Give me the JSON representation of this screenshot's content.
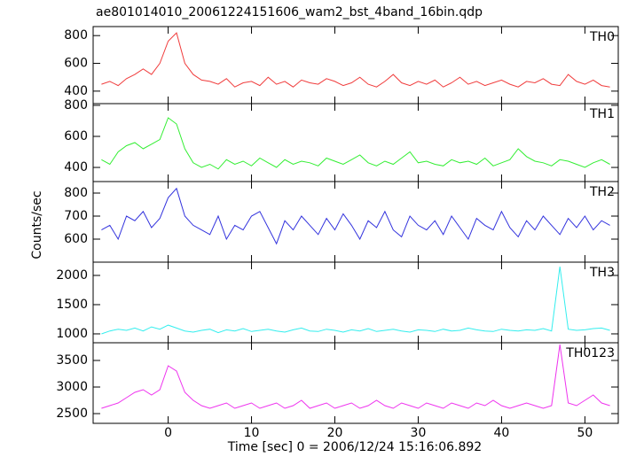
{
  "title": "ae801014010_20061224151606_wam2_bst_4band_16bin.qdp",
  "y_label": "Counts/sec",
  "x_label": "Time [sec] 0 = 2006/12/24 15:16:06.892",
  "chart_data": [
    {
      "type": "line",
      "title": "TH0",
      "color": "#f03c3c",
      "x": [
        -8,
        -7,
        -6,
        -5,
        -4,
        -3,
        -2,
        -1,
        0,
        1,
        2,
        3,
        4,
        5,
        6,
        7,
        8,
        9,
        10,
        11,
        12,
        13,
        14,
        15,
        16,
        17,
        18,
        19,
        20,
        21,
        22,
        23,
        24,
        25,
        26,
        27,
        28,
        29,
        30,
        31,
        32,
        33,
        34,
        35,
        36,
        37,
        38,
        39,
        40,
        41,
        42,
        43,
        44,
        45,
        46,
        47,
        48,
        49,
        50,
        51,
        52,
        53
      ],
      "values": [
        450,
        470,
        440,
        490,
        520,
        560,
        520,
        600,
        760,
        820,
        600,
        520,
        480,
        470,
        450,
        490,
        430,
        460,
        470,
        440,
        500,
        450,
        470,
        430,
        480,
        460,
        450,
        490,
        470,
        440,
        460,
        500,
        450,
        430,
        470,
        520,
        460,
        440,
        470,
        450,
        480,
        430,
        460,
        500,
        450,
        470,
        440,
        460,
        480,
        450,
        430,
        470,
        460,
        490,
        450,
        440,
        520,
        470,
        450,
        480,
        440,
        430
      ],
      "xlim": [
        -9,
        54
      ],
      "xticks": [
        0,
        10,
        20,
        30,
        40,
        50
      ],
      "ylim": [
        310,
        865
      ],
      "yticks": [
        400,
        600,
        800
      ]
    },
    {
      "type": "line",
      "title": "TH1",
      "color": "#33ee33",
      "x": [
        -8,
        -7,
        -6,
        -5,
        -4,
        -3,
        -2,
        -1,
        0,
        1,
        2,
        3,
        4,
        5,
        6,
        7,
        8,
        9,
        10,
        11,
        12,
        13,
        14,
        15,
        16,
        17,
        18,
        19,
        20,
        21,
        22,
        23,
        24,
        25,
        26,
        27,
        28,
        29,
        30,
        31,
        32,
        33,
        34,
        35,
        36,
        37,
        38,
        39,
        40,
        41,
        42,
        43,
        44,
        45,
        46,
        47,
        48,
        49,
        50,
        51,
        52,
        53
      ],
      "values": [
        450,
        420,
        500,
        540,
        560,
        520,
        550,
        580,
        720,
        680,
        520,
        430,
        400,
        420,
        390,
        450,
        420,
        440,
        410,
        460,
        430,
        400,
        450,
        420,
        440,
        430,
        410,
        460,
        440,
        420,
        450,
        480,
        430,
        410,
        440,
        420,
        460,
        500,
        430,
        440,
        420,
        410,
        450,
        430,
        440,
        420,
        460,
        410,
        430,
        450,
        520,
        470,
        440,
        430,
        410,
        450,
        440,
        420,
        400,
        430,
        450,
        420
      ],
      "xlim": [
        -9,
        54
      ],
      "xticks": [
        0,
        10,
        20,
        30,
        40,
        50
      ],
      "ylim": [
        309,
        811
      ],
      "yticks": [
        400,
        600,
        800
      ]
    },
    {
      "type": "line",
      "title": "TH2",
      "color": "#3333dd",
      "x": [
        -8,
        -7,
        -6,
        -5,
        -4,
        -3,
        -2,
        -1,
        0,
        1,
        2,
        3,
        4,
        5,
        6,
        7,
        8,
        9,
        10,
        11,
        12,
        13,
        14,
        15,
        16,
        17,
        18,
        19,
        20,
        21,
        22,
        23,
        24,
        25,
        26,
        27,
        28,
        29,
        30,
        31,
        32,
        33,
        34,
        35,
        36,
        37,
        38,
        39,
        40,
        41,
        42,
        43,
        44,
        45,
        46,
        47,
        48,
        49,
        50,
        51,
        52,
        53
      ],
      "values": [
        640,
        660,
        600,
        700,
        680,
        720,
        650,
        690,
        780,
        820,
        700,
        660,
        640,
        620,
        700,
        600,
        660,
        640,
        700,
        720,
        650,
        580,
        680,
        640,
        700,
        660,
        620,
        690,
        640,
        710,
        660,
        600,
        680,
        650,
        720,
        640,
        610,
        700,
        660,
        640,
        680,
        620,
        700,
        650,
        600,
        690,
        660,
        640,
        720,
        650,
        610,
        680,
        640,
        700,
        660,
        620,
        690,
        650,
        700,
        640,
        680,
        660
      ],
      "xlim": [
        -9,
        54
      ],
      "xticks": [
        0,
        10,
        20,
        30,
        40,
        50
      ],
      "ylim": [
        500,
        850
      ],
      "yticks": [
        600,
        700,
        800
      ]
    },
    {
      "type": "line",
      "title": "TH3",
      "color": "#33eeee",
      "x": [
        -8,
        -7,
        -6,
        -5,
        -4,
        -3,
        -2,
        -1,
        0,
        1,
        2,
        3,
        4,
        5,
        6,
        7,
        8,
        9,
        10,
        11,
        12,
        13,
        14,
        15,
        16,
        17,
        18,
        19,
        20,
        21,
        22,
        23,
        24,
        25,
        26,
        27,
        28,
        29,
        30,
        31,
        32,
        33,
        34,
        35,
        36,
        37,
        38,
        39,
        40,
        41,
        42,
        43,
        44,
        45,
        46,
        47,
        48,
        49,
        50,
        51,
        52,
        53
      ],
      "values": [
        1000,
        1050,
        1080,
        1060,
        1100,
        1050,
        1120,
        1080,
        1150,
        1100,
        1050,
        1030,
        1060,
        1080,
        1020,
        1070,
        1050,
        1090,
        1040,
        1060,
        1080,
        1050,
        1030,
        1070,
        1100,
        1050,
        1040,
        1080,
        1060,
        1030,
        1070,
        1050,
        1090,
        1040,
        1060,
        1080,
        1050,
        1030,
        1070,
        1060,
        1040,
        1080,
        1050,
        1060,
        1100,
        1070,
        1050,
        1040,
        1080,
        1060,
        1050,
        1070,
        1060,
        1090,
        1050,
        2150,
        1080,
        1060,
        1070,
        1090,
        1100,
        1060
      ],
      "xlim": [
        -9,
        54
      ],
      "xticks": [
        0,
        10,
        20,
        30,
        40,
        50
      ],
      "ylim": [
        848,
        2227
      ],
      "yticks": [
        1000,
        1500,
        2000
      ]
    },
    {
      "type": "line",
      "title": "TH0123",
      "color": "#ee33ee",
      "x": [
        -8,
        -7,
        -6,
        -5,
        -4,
        -3,
        -2,
        -1,
        0,
        1,
        2,
        3,
        4,
        5,
        6,
        7,
        8,
        9,
        10,
        11,
        12,
        13,
        14,
        15,
        16,
        17,
        18,
        19,
        20,
        21,
        22,
        23,
        24,
        25,
        26,
        27,
        28,
        29,
        30,
        31,
        32,
        33,
        34,
        35,
        36,
        37,
        38,
        39,
        40,
        41,
        42,
        43,
        44,
        45,
        46,
        47,
        48,
        49,
        50,
        51,
        52,
        53
      ],
      "values": [
        2600,
        2650,
        2700,
        2800,
        2900,
        2950,
        2850,
        2950,
        3400,
        3300,
        2900,
        2750,
        2650,
        2600,
        2650,
        2700,
        2600,
        2650,
        2700,
        2600,
        2650,
        2700,
        2600,
        2650,
        2750,
        2600,
        2650,
        2700,
        2600,
        2650,
        2700,
        2600,
        2650,
        2750,
        2650,
        2600,
        2700,
        2650,
        2600,
        2700,
        2650,
        2600,
        2700,
        2650,
        2600,
        2700,
        2650,
        2750,
        2650,
        2600,
        2650,
        2700,
        2650,
        2600,
        2650,
        3800,
        2700,
        2650,
        2750,
        2850,
        2700,
        2650
      ],
      "xlim": [
        -9,
        54
      ],
      "xticks": [
        0,
        10,
        20,
        30,
        40,
        50
      ],
      "ylim": [
        2317,
        3833
      ],
      "yticks": [
        2500,
        3000,
        3500
      ]
    }
  ]
}
